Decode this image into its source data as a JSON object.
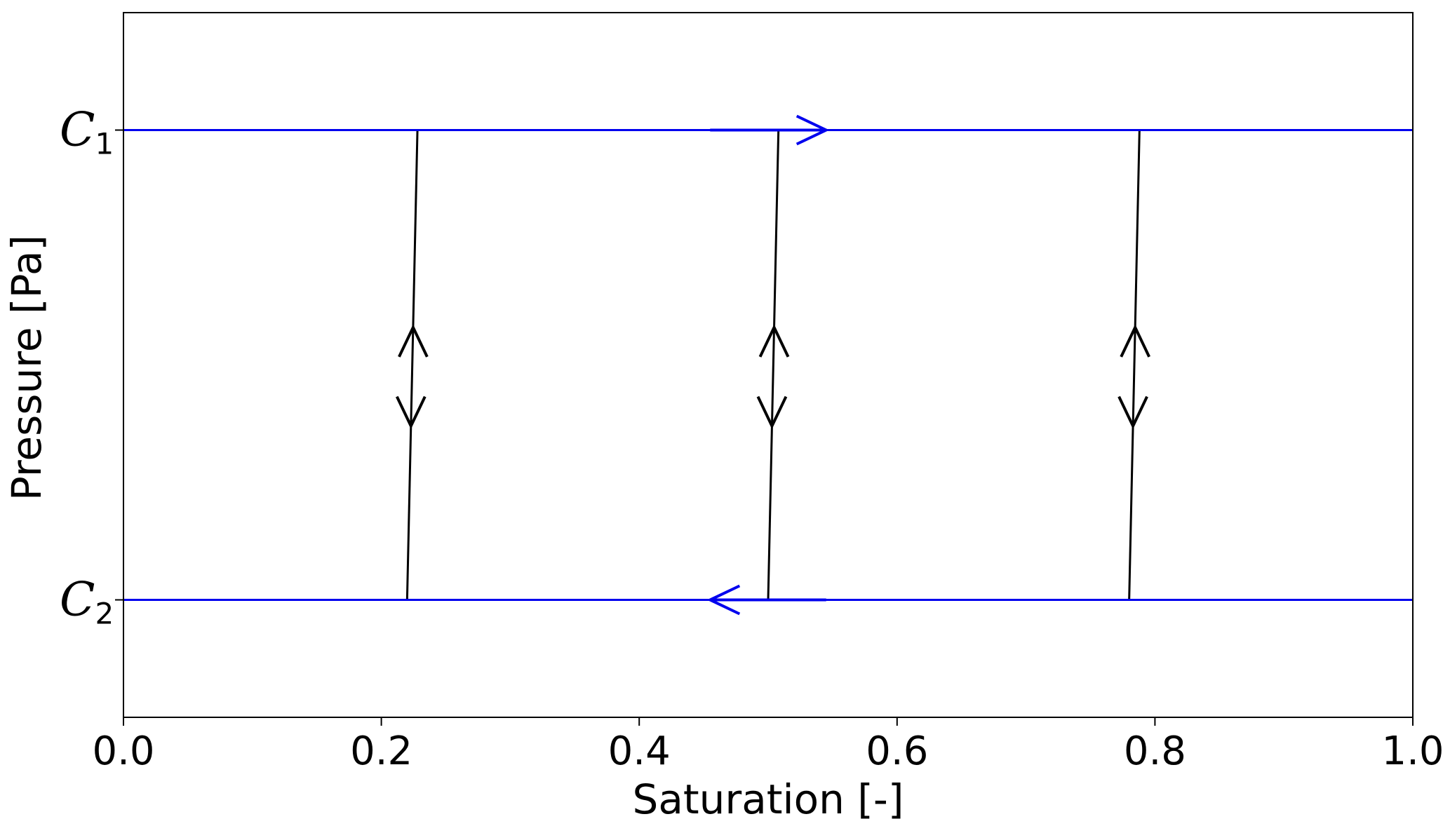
{
  "chart_data": {
    "type": "line",
    "xlabel": "Saturation [-]",
    "ylabel": "Pressure [Pa]",
    "xlim": [
      0.0,
      1.0
    ],
    "ylim": [
      -0.25,
      1.25
    ],
    "x_ticks": [
      {
        "value": 0.0,
        "label": "0.0"
      },
      {
        "value": 0.2,
        "label": "0.2"
      },
      {
        "value": 0.4,
        "label": "0.4"
      },
      {
        "value": 0.6,
        "label": "0.6"
      },
      {
        "value": 0.8,
        "label": "0.8"
      },
      {
        "value": 1.0,
        "label": "1.0"
      }
    ],
    "y_levels": [
      {
        "value": 1.0,
        "label": "C",
        "subscript": "1"
      },
      {
        "value": 0.0,
        "label": "C",
        "subscript": "2"
      }
    ],
    "grid": false,
    "colors": {
      "level_lines": "#0000ee",
      "transitions": "#000000"
    },
    "level_lines": [
      {
        "y": 1.0,
        "x": [
          0.0,
          1.0
        ],
        "arrow_direction": "right",
        "arrow_x": [
          0.455,
          0.545
        ]
      },
      {
        "y": 0.0,
        "x": [
          0.0,
          1.0
        ],
        "arrow_direction": "left",
        "arrow_x": [
          0.455,
          0.545
        ]
      }
    ],
    "transitions": [
      {
        "x_top": 0.228,
        "x_bottom": 0.22,
        "arrows": [
          "up",
          "down"
        ]
      },
      {
        "x_top": 0.508,
        "x_bottom": 0.5,
        "arrows": [
          "up",
          "down"
        ]
      },
      {
        "x_top": 0.788,
        "x_bottom": 0.78,
        "arrows": [
          "up",
          "down"
        ]
      }
    ]
  }
}
